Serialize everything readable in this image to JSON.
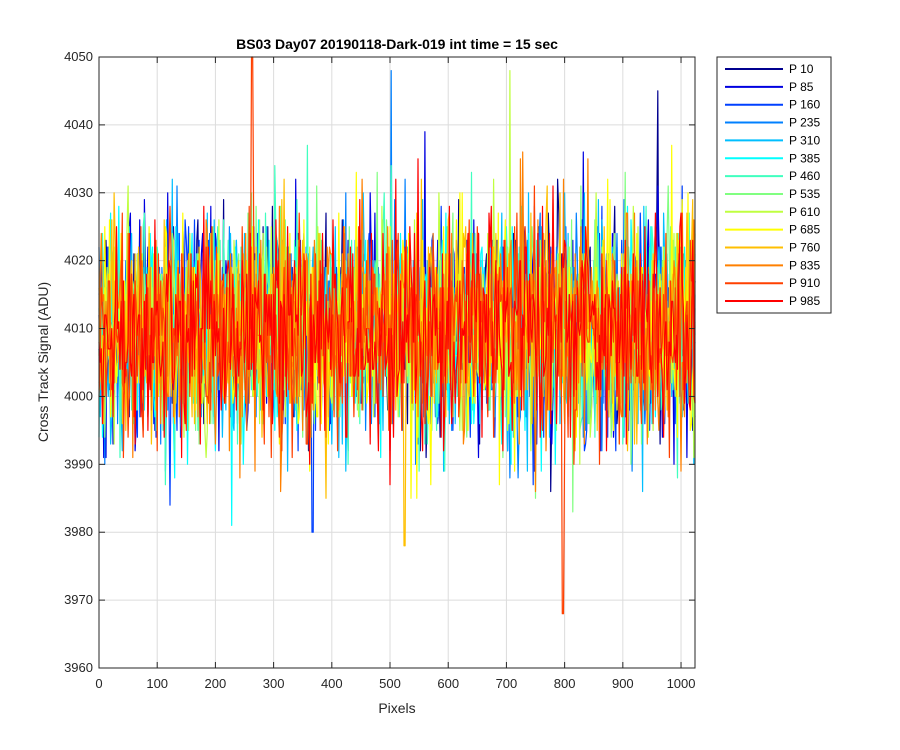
{
  "chart_data": {
    "type": "line",
    "title": "BS03 Day07 20190118-Dark-019 int time = 15 sec",
    "xlabel": "Pixels",
    "ylabel": "Cross Track Signal (ADU)",
    "xlim": [
      0,
      1024
    ],
    "ylim": [
      3960,
      4050
    ],
    "xticks": [
      0,
      100,
      200,
      300,
      400,
      500,
      600,
      700,
      800,
      900,
      1000
    ],
    "yticks": [
      3960,
      3970,
      3980,
      3990,
      4000,
      4010,
      4020,
      4030,
      4040,
      4050
    ],
    "grid": true,
    "legend_position": "outside-right-top",
    "series_baseline": 4010,
    "series_spread": 8,
    "series": [
      {
        "name": "P 10",
        "color": "#00008f"
      },
      {
        "name": "P 85",
        "color": "#0000e0"
      },
      {
        "name": "P 160",
        "color": "#0040ff"
      },
      {
        "name": "P 235",
        "color": "#0080ff"
      },
      {
        "name": "P 310",
        "color": "#00bfff"
      },
      {
        "name": "P 385",
        "color": "#00ffff"
      },
      {
        "name": "P 460",
        "color": "#40ffbf"
      },
      {
        "name": "P 535",
        "color": "#80ff80"
      },
      {
        "name": "P 610",
        "color": "#bfff40"
      },
      {
        "name": "P 685",
        "color": "#ffff00"
      },
      {
        "name": "P 760",
        "color": "#ffbf00"
      },
      {
        "name": "P 835",
        "color": "#ff8000"
      },
      {
        "name": "P 910",
        "color": "#ff4000"
      },
      {
        "name": "P 985",
        "color": "#ff0000"
      }
    ],
    "notable_extremes": [
      {
        "series": "P 910",
        "x": 263,
        "y": 4050
      },
      {
        "series": "P 10",
        "x": 960,
        "y": 4045
      },
      {
        "series": "P 235",
        "x": 502,
        "y": 4048
      },
      {
        "series": "P 610",
        "x": 706,
        "y": 4048
      },
      {
        "series": "P 910",
        "x": 797,
        "y": 3968
      },
      {
        "series": "P 760",
        "x": 525,
        "y": 3978
      },
      {
        "series": "P 160",
        "x": 367,
        "y": 3980
      }
    ]
  }
}
